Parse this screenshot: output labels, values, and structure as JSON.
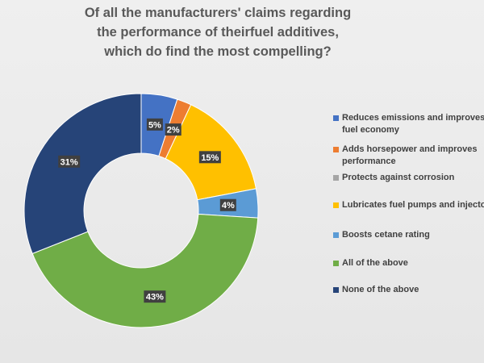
{
  "chart_data": {
    "type": "pie",
    "donut": true,
    "title_lines": [
      "Of all the manufacturers' claims regarding",
      "the performance of theirfuel additives,",
      "which do find the most compelling?"
    ],
    "categories": [
      "Reduces emissions and improves fuel economy",
      "Adds horsepower and improves performance",
      "Protects against corrosion",
      "Lubricates fuel pumps and injectors",
      "Boosts cetane rating",
      "All of the above",
      "None of the above"
    ],
    "values": [
      5,
      2,
      0,
      15,
      4,
      43,
      31
    ],
    "data_labels": [
      "5%",
      "2%",
      "",
      "15%",
      "4%",
      "43%",
      "31%"
    ],
    "colors": [
      "#4472C4",
      "#ED7D31",
      "#A5A5A5",
      "#FFC000",
      "#5B9BD5",
      "#70AD47",
      "#264478"
    ],
    "legend_position": "right"
  }
}
